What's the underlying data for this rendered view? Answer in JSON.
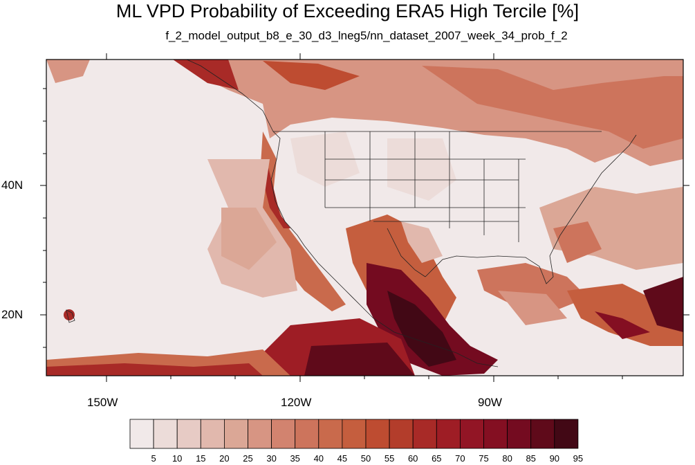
{
  "title": "ML VPD Probability of Exceeding ERA5 High Tercile [%]",
  "subtitle": "f_2_model_output_b8_e_30_d3_lneg5/nn_dataset_2007_week_34_prob_f_2",
  "lat_labels": [
    "40N",
    "20N"
  ],
  "lon_labels": [
    "150W",
    "120W",
    "90W"
  ],
  "colorbar": {
    "labels": [
      "5",
      "10",
      "15",
      "20",
      "25",
      "30",
      "35",
      "40",
      "45",
      "50",
      "55",
      "60",
      "65",
      "70",
      "75",
      "80",
      "85",
      "90",
      "95"
    ],
    "colors": [
      "#f1e9e9",
      "#ecdcd9",
      "#e7cbc5",
      "#e1b8ad",
      "#dba796",
      "#d79583",
      "#d2836f",
      "#cd745c",
      "#c96a4c",
      "#c55e3e",
      "#be4c31",
      "#b33d2b",
      "#a82a27",
      "#9e1d25",
      "#921525",
      "#840f22",
      "#740b20",
      "#5f0a1a",
      "#420815"
    ]
  },
  "map": {
    "projection": "cylindrical equidistant",
    "lon_range": [
      -159,
      -61
    ],
    "lat_range": [
      11,
      60
    ],
    "land_color": "#f1e9e9",
    "ocean_color": "#f1e9e9"
  }
}
